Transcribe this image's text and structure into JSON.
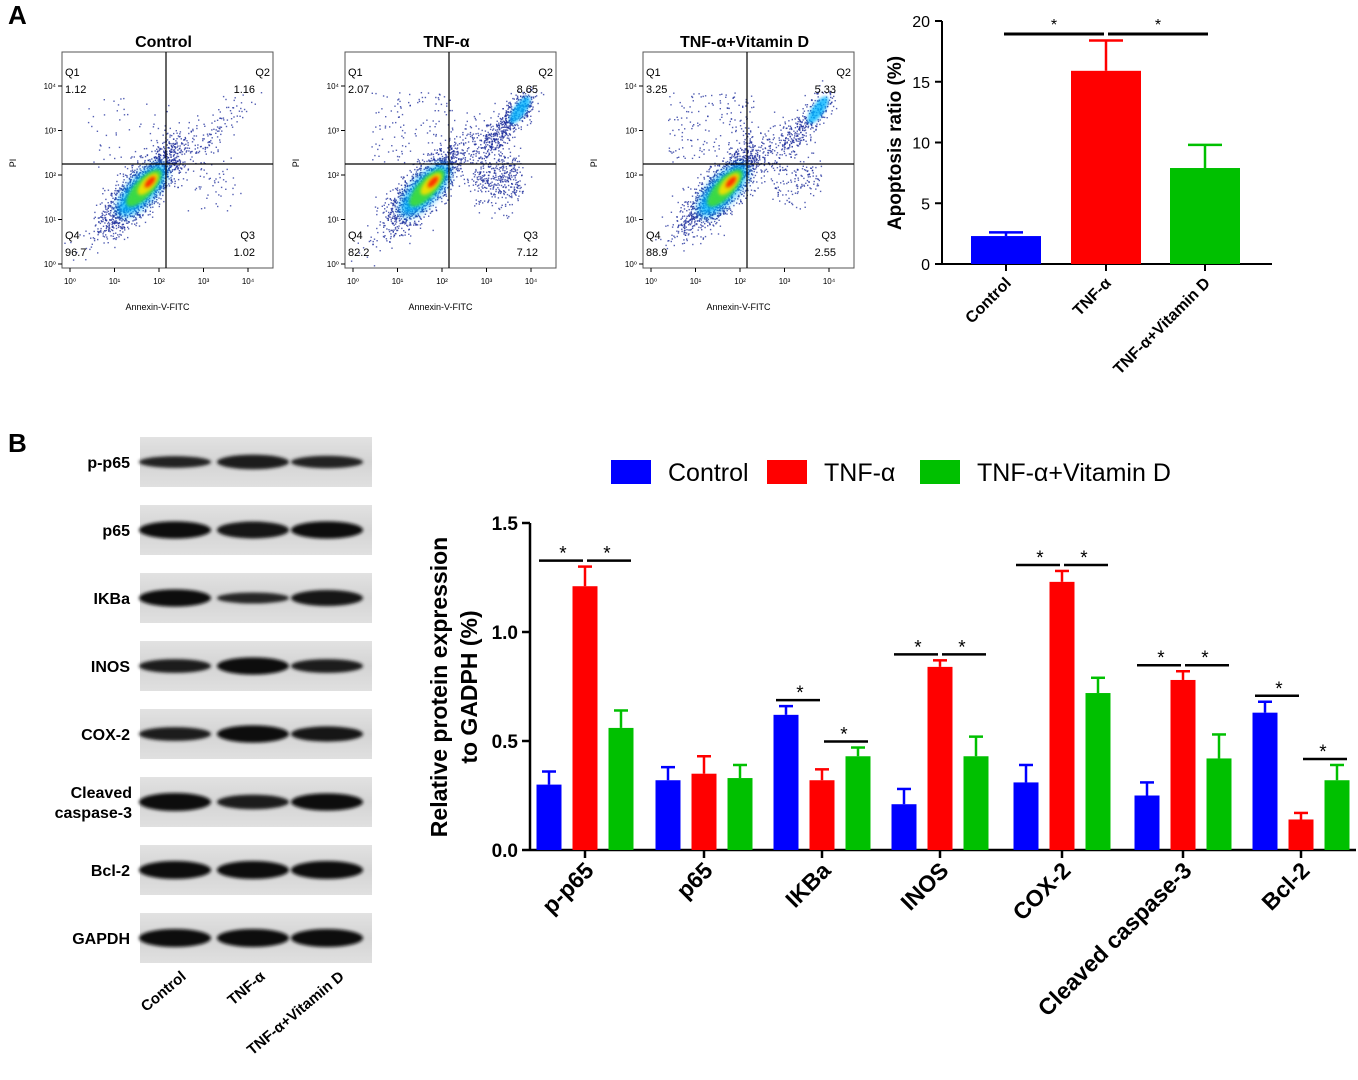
{
  "panels": {
    "a": "A",
    "b": "B"
  },
  "colors": {
    "control": "#0000ff",
    "tnf": "#ff0000",
    "vitd": "#00c000"
  },
  "flow": {
    "xlabel": "Annexin-V-FITC",
    "ylabel": "PI",
    "ticks": [
      "10⁰",
      "10¹",
      "10²",
      "10³",
      "10⁴"
    ],
    "plots": [
      {
        "title": "Control",
        "q1": "1.12",
        "q2": "1.16",
        "q3": "1.02",
        "q4": "96.7"
      },
      {
        "title": "TNF-α",
        "q1": "2.07",
        "q2": "8.65",
        "q3": "7.12",
        "q4": "82.2"
      },
      {
        "title": "TNF-α+Vitamin D",
        "q1": "3.25",
        "q2": "5.33",
        "q3": "2.55",
        "q4": "88.9"
      }
    ],
    "qnames": [
      "Q1",
      "Q2",
      "Q3",
      "Q4"
    ]
  },
  "blot": {
    "proteins": [
      "p-p65",
      "p65",
      "IKBa",
      "INOS",
      "COX-2",
      "Cleaved\ncaspase-3",
      "Bcl-2",
      "GAPDH"
    ],
    "lanes": [
      "Control",
      "TNF-α",
      "TNF-α+Vitamin D"
    ]
  },
  "chart_data": [
    {
      "type": "bar",
      "categories": [
        "Control",
        "TNF-α",
        "TNF-α+Vitamin D"
      ],
      "values": [
        2.3,
        15.9,
        7.9
      ],
      "errors": [
        0.3,
        2.5,
        1.9
      ],
      "ylabel": "Apoptosis ratio (%)",
      "ylim": [
        0,
        20
      ],
      "yticks": [
        0,
        5,
        10,
        15,
        20
      ],
      "significance": [
        {
          "from": "Control",
          "to": "TNF-α",
          "label": "*"
        },
        {
          "from": "TNF-α",
          "to": "TNF-α+Vitamin D",
          "label": "*"
        }
      ]
    },
    {
      "type": "bar",
      "categories": [
        "p-p65",
        "p65",
        "IKBa",
        "INOS",
        "COX-2",
        "Cleaved caspase-3",
        "Bcl-2"
      ],
      "series": [
        {
          "name": "Control",
          "values": [
            0.3,
            0.32,
            0.62,
            0.21,
            0.31,
            0.25,
            0.63
          ],
          "errors": [
            0.06,
            0.06,
            0.04,
            0.07,
            0.08,
            0.06,
            0.05
          ]
        },
        {
          "name": "TNF-α",
          "values": [
            1.21,
            0.35,
            0.32,
            0.84,
            1.23,
            0.78,
            0.14
          ],
          "errors": [
            0.09,
            0.08,
            0.05,
            0.03,
            0.05,
            0.04,
            0.03
          ]
        },
        {
          "name": "TNF-α+Vitamin D",
          "values": [
            0.56,
            0.33,
            0.43,
            0.43,
            0.72,
            0.42,
            0.32
          ],
          "errors": [
            0.08,
            0.06,
            0.04,
            0.09,
            0.07,
            0.11,
            0.07
          ]
        }
      ],
      "ylabel": "Relative protein expression to GADPH (%)",
      "ylim": [
        0,
        1.5
      ],
      "yticks": [
        0.0,
        0.5,
        1.0,
        1.5
      ],
      "legend": "top",
      "significance": [
        {
          "category": "p-p65",
          "pairs": [
            [
              0,
              1
            ],
            [
              1,
              2
            ]
          ]
        },
        {
          "category": "IKBa",
          "pairs": [
            [
              0,
              1
            ],
            [
              1,
              2
            ]
          ]
        },
        {
          "category": "INOS",
          "pairs": [
            [
              0,
              1
            ],
            [
              1,
              2
            ]
          ]
        },
        {
          "category": "COX-2",
          "pairs": [
            [
              0,
              1
            ],
            [
              1,
              2
            ]
          ]
        },
        {
          "category": "Cleaved caspase-3",
          "pairs": [
            [
              0,
              1
            ],
            [
              1,
              2
            ]
          ]
        },
        {
          "category": "Bcl-2",
          "pairs": [
            [
              0,
              1
            ],
            [
              1,
              2
            ]
          ]
        }
      ],
      "sig_label": "*"
    }
  ]
}
